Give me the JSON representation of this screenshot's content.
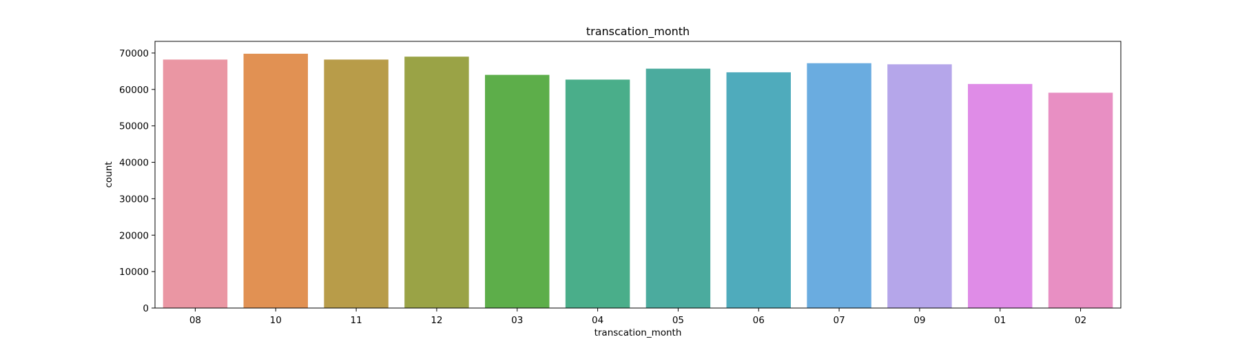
{
  "chart_data": {
    "type": "bar",
    "title": "transcation_month",
    "xlabel": "transcation_month",
    "ylabel": "count",
    "categories": [
      "08",
      "10",
      "11",
      "12",
      "03",
      "04",
      "05",
      "06",
      "07",
      "09",
      "01",
      "02"
    ],
    "values": [
      68200,
      69800,
      68200,
      69000,
      64000,
      62700,
      65700,
      64700,
      67200,
      66900,
      61500,
      59100
    ],
    "ylim": [
      0,
      73200
    ],
    "yticks": [
      0,
      10000,
      20000,
      30000,
      40000,
      50000,
      60000,
      70000
    ],
    "ytick_labels": [
      "0",
      "10000",
      "20000",
      "30000",
      "40000",
      "50000",
      "60000",
      "70000"
    ],
    "colors": [
      "#ea96a3",
      "#e19153",
      "#b89c49",
      "#9aa346",
      "#5dae4a",
      "#4aae8a",
      "#4bab9e",
      "#4fabbc",
      "#6aace0",
      "#b5a6ea",
      "#df8ce7",
      "#e88fc3"
    ],
    "grid": false,
    "legend": "none"
  }
}
